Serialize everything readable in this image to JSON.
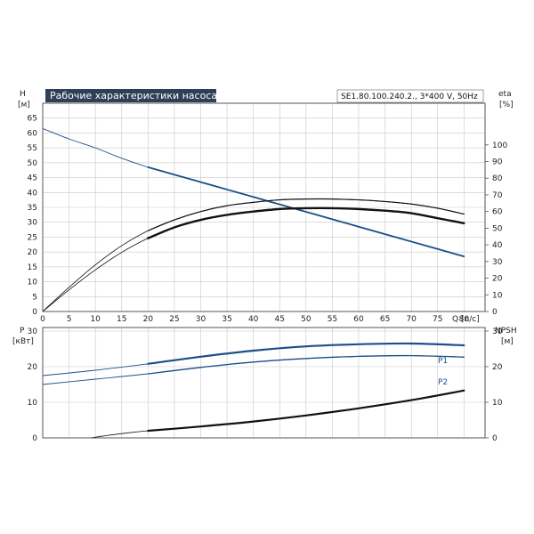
{
  "chart_data": [
    {
      "type": "line",
      "title": "Рабочие характеристики насоса",
      "subtitle": "SE1.80.100.240.2., 3*400 V, 50Hz",
      "xlabel": "Q [л/с]",
      "xlim": [
        0,
        84
      ],
      "xticks": [
        0,
        5,
        10,
        15,
        20,
        25,
        30,
        35,
        40,
        45,
        50,
        55,
        60,
        65,
        70,
        75,
        80
      ],
      "ylabel": [
        "H",
        "[м]"
      ],
      "ylim": [
        0,
        70
      ],
      "yticks": [
        0,
        5,
        10,
        15,
        20,
        25,
        30,
        35,
        40,
        45,
        50,
        55,
        60,
        65
      ],
      "y2label": [
        "eta",
        "[%]"
      ],
      "y2lim": [
        0,
        125
      ],
      "y2ticks": [
        0,
        10,
        20,
        30,
        40,
        50,
        60,
        70,
        80,
        90,
        100
      ],
      "grid": true,
      "colors": {
        "head": "#1a4f8a",
        "eta": "#111111"
      },
      "series": [
        {
          "axis": "left",
          "values": [
            [
              0,
              61.5
            ],
            [
              5,
              58
            ],
            [
              10,
              55
            ],
            [
              15,
              51.5
            ],
            [
              20,
              48.5
            ],
            [
              25,
              46
            ],
            [
              30,
              43.5
            ],
            [
              35,
              41
            ],
            [
              40,
              38.5
            ],
            [
              45,
              36
            ],
            [
              50,
              33.5
            ],
            [
              55,
              31
            ],
            [
              60,
              28.5
            ],
            [
              65,
              26
            ],
            [
              70,
              23.5
            ],
            [
              75,
              21
            ],
            [
              80,
              18.5
            ]
          ]
        },
        {
          "axis": "right",
          "values": [
            [
              0,
              0
            ],
            [
              5,
              13
            ],
            [
              10,
              25
            ],
            [
              15,
              35.5
            ],
            [
              20,
              44
            ],
            [
              25,
              50.5
            ],
            [
              30,
              55
            ],
            [
              35,
              58
            ],
            [
              40,
              60
            ],
            [
              45,
              61.5
            ],
            [
              50,
              62
            ],
            [
              55,
              62
            ],
            [
              60,
              61.5
            ],
            [
              65,
              60.5
            ],
            [
              70,
              59
            ],
            [
              75,
              56
            ],
            [
              80,
              53
            ]
          ]
        },
        {
          "axis": "right",
          "values": [
            [
              0,
              0
            ],
            [
              5,
              14.5
            ],
            [
              10,
              28
            ],
            [
              15,
              39.5
            ],
            [
              20,
              48.5
            ],
            [
              25,
              55
            ],
            [
              30,
              60
            ],
            [
              35,
              63.5
            ],
            [
              40,
              65.5
            ],
            [
              45,
              67
            ],
            [
              50,
              67.5
            ],
            [
              55,
              67.5
            ],
            [
              60,
              67
            ],
            [
              65,
              66
            ],
            [
              70,
              64.5
            ],
            [
              75,
              62
            ],
            [
              80,
              58.5
            ]
          ]
        }
      ]
    },
    {
      "type": "line",
      "ylabel": [
        "P",
        "[кВт]"
      ],
      "ylim": [
        0,
        31
      ],
      "yticks": [
        0,
        10,
        20,
        30
      ],
      "y2label": [
        "NPSH",
        "[м]"
      ],
      "y2lim": [
        0,
        31
      ],
      "y2ticks": [
        0,
        10,
        20,
        30
      ],
      "xlim": [
        0,
        84
      ],
      "grid": true,
      "colors": {
        "power": "#1a4f8a",
        "npsh": "#111111"
      },
      "series": [
        {
          "name": "P1",
          "axis": "left",
          "values": [
            [
              0,
              17.5
            ],
            [
              10,
              19
            ],
            [
              20,
              20.8
            ],
            [
              30,
              22.8
            ],
            [
              40,
              24.5
            ],
            [
              50,
              25.7
            ],
            [
              60,
              26.3
            ],
            [
              70,
              26.5
            ],
            [
              80,
              26
            ]
          ]
        },
        {
          "name": "P2",
          "axis": "left",
          "values": [
            [
              0,
              15
            ],
            [
              10,
              16.5
            ],
            [
              20,
              18
            ],
            [
              30,
              19.8
            ],
            [
              40,
              21.3
            ],
            [
              50,
              22.3
            ],
            [
              60,
              22.9
            ],
            [
              70,
              23.1
            ],
            [
              80,
              22.7
            ]
          ]
        },
        {
          "axis": "right",
          "values": [
            [
              9,
              0
            ],
            [
              15,
              1.2
            ],
            [
              20,
              2
            ],
            [
              30,
              3.2
            ],
            [
              40,
              4.6
            ],
            [
              50,
              6.3
            ],
            [
              60,
              8.3
            ],
            [
              70,
              10.6
            ],
            [
              80,
              13.3
            ]
          ]
        }
      ]
    }
  ]
}
